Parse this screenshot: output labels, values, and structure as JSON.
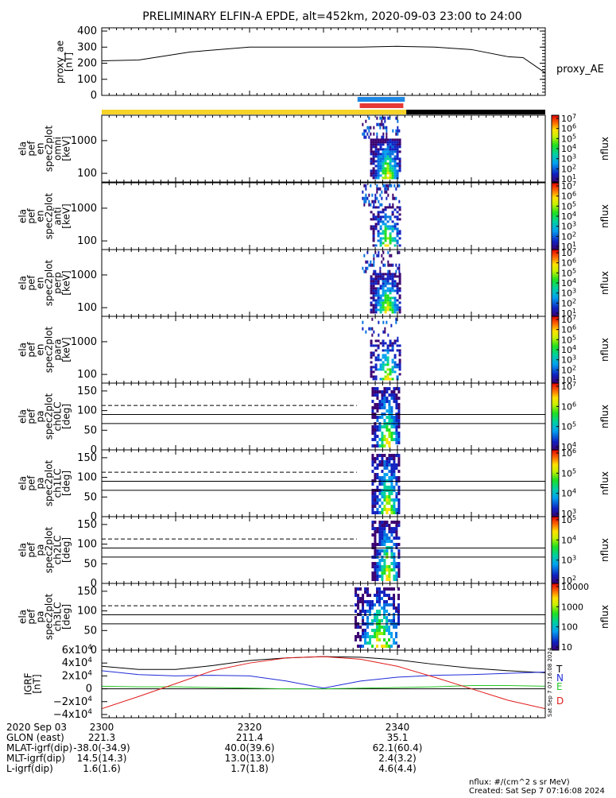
{
  "title": "PRELIMINARY ELFIN-A EPDE, alt=452km, 2020-09-03 23:00 to 24:00",
  "colors": {
    "sun_bar": "#f5d327",
    "shadow_bar": "#000000",
    "science_blue": "#1e88e5",
    "science_red": "#e53935",
    "grf_T": "#000000",
    "grf_N": "#1f2bd6",
    "grf_E": "#27c627",
    "grf_D": "#e11b1b"
  },
  "chart_data": {
    "type": "line",
    "proxy_ae": {
      "ylabel": "proxy_ae [nT]",
      "legend": "proxy_AE",
      "yticks": [
        "400",
        "300",
        "200",
        "100",
        "0"
      ],
      "ylim": [
        0,
        420
      ],
      "x_minutes": [
        0,
        5,
        12,
        20,
        25,
        30,
        35,
        40,
        45,
        50,
        55,
        57,
        60
      ],
      "values": [
        215,
        220,
        270,
        300,
        300,
        300,
        300,
        305,
        300,
        285,
        240,
        235,
        140
      ]
    },
    "energy_panels": [
      {
        "ylabel": [
          "ela",
          "pef",
          "en",
          "spec2plot",
          "omni",
          "[keV]"
        ],
        "yticks": [
          "1000",
          "100"
        ]
      },
      {
        "ylabel": [
          "ela",
          "pef",
          "en",
          "spec2plot",
          "anti",
          "[keV]"
        ],
        "yticks": [
          "1000",
          "100"
        ]
      },
      {
        "ylabel": [
          "ela",
          "pef",
          "en",
          "spec2plot",
          "perp",
          "[keV]"
        ],
        "yticks": [
          "1000",
          "100"
        ]
      },
      {
        "ylabel": [
          "ela",
          "pef",
          "en",
          "spec2plot",
          "para",
          "[keV]"
        ],
        "yticks": [
          "1000",
          "100"
        ]
      }
    ],
    "pa_panels": [
      {
        "ylabel": [
          "ela",
          "pef",
          "pa",
          "spec2plot",
          "ch0LC",
          "[deg]"
        ],
        "yticks": [
          "150",
          "100",
          "50",
          "0"
        ]
      },
      {
        "ylabel": [
          "ela",
          "pef",
          "pa",
          "spec2plot",
          "ch1LC",
          "[deg]"
        ],
        "yticks": [
          "150",
          "100",
          "50",
          "0"
        ]
      },
      {
        "ylabel": [
          "ela",
          "pef",
          "pa",
          "spec2plot",
          "ch2LC",
          "[deg]"
        ],
        "yticks": [
          "150",
          "100",
          "50",
          "0"
        ]
      },
      {
        "ylabel": [
          "ela",
          "pef",
          "pa",
          "spec2plot",
          "ch3LC",
          "[deg]"
        ],
        "yticks": [
          "150",
          "100",
          "50",
          "0"
        ]
      }
    ],
    "colorbars": [
      {
        "ticks": [
          "10",
          "10",
          "10",
          "10",
          "10",
          "10",
          "10"
        ],
        "exps": [
          "7",
          "6",
          "5",
          "4",
          "3",
          "2",
          "1"
        ],
        "label": "nflux"
      },
      {
        "ticks": [
          "10",
          "10",
          "10",
          "10",
          "10",
          "10",
          "10"
        ],
        "exps": [
          "7",
          "6",
          "5",
          "4",
          "3",
          "2",
          "1"
        ],
        "label": "nflux"
      },
      {
        "ticks": [
          "10",
          "10",
          "10",
          "10",
          "10",
          "10",
          "10"
        ],
        "exps": [
          "7",
          "6",
          "5",
          "4",
          "3",
          "2",
          "1"
        ],
        "label": "nflux"
      },
      {
        "ticks": [
          "10",
          "10",
          "10",
          "10",
          "10",
          "10",
          "10"
        ],
        "exps": [
          "7",
          "6",
          "5",
          "4",
          "3",
          "2",
          "1"
        ],
        "label": "nflux"
      },
      {
        "ticks": [
          "10",
          "10",
          "10",
          "10"
        ],
        "exps": [
          "7",
          "6",
          "5",
          "4"
        ],
        "label": "nflux"
      },
      {
        "ticks": [
          "10",
          "10",
          "10",
          "10"
        ],
        "exps": [
          "6",
          "5",
          "4",
          "3"
        ],
        "label": "nflux"
      },
      {
        "ticks": [
          "10",
          "10",
          "10",
          "10"
        ],
        "exps": [
          "5",
          "4",
          "3",
          "2"
        ],
        "label": "nflux"
      },
      {
        "ticks": [
          "10000",
          "1000",
          "100",
          "10"
        ],
        "exps": [
          "",
          "",
          "",
          ""
        ],
        "label": "nflux"
      }
    ],
    "grf": {
      "ylabel": "IGRF [nT]",
      "yticks": [
        "6x10",
        "4x10",
        "2x10",
        "0",
        "−2x10",
        "−4x10"
      ],
      "yexp": "4",
      "series_names": [
        "T",
        "N",
        "E",
        "D"
      ],
      "ylim": [
        -45000,
        60000
      ],
      "x_minutes": [
        0,
        5,
        10,
        15,
        20,
        25,
        30,
        35,
        40,
        45,
        50,
        55,
        60
      ],
      "T": [
        35000,
        30000,
        30000,
        36000,
        44000,
        48000,
        50000,
        49000,
        45000,
        38000,
        32000,
        28000,
        25000
      ],
      "N": [
        28000,
        22000,
        20000,
        21000,
        20000,
        12000,
        1000,
        12000,
        18000,
        21000,
        22000,
        24000,
        26000
      ],
      "E": [
        4000,
        3000,
        3000,
        2000,
        1000,
        0,
        0,
        1000,
        2000,
        3000,
        5000,
        5000,
        4000
      ],
      "D": [
        -31000,
        -12000,
        8000,
        28000,
        40000,
        48000,
        50000,
        46000,
        35000,
        18000,
        0,
        -18000,
        -31000
      ]
    },
    "xticks": [
      "2300",
      "2320",
      "2340"
    ]
  },
  "footer": {
    "rows": [
      {
        "label": "2020 Sep 03",
        "v1": "2300",
        "v2": "2320",
        "v3": "2340"
      },
      {
        "label": "GLON (east)",
        "v1": "221.3",
        "v2": "211.4",
        "v3": "35.1"
      },
      {
        "label": "MLAT-igrf(dip)",
        "v1": "-38.0(-34.9)",
        "v2": "40.0(39.6)",
        "v3": "62.1(60.4)"
      },
      {
        "label": "MLT-igrf(dip)",
        "v1": "14.5(14.3)",
        "v2": "13.0(13.0)",
        "v3": "2.4(3.2)"
      },
      {
        "label": "L-igrf(dip)",
        "v1": "1.6(1.6)",
        "v2": "1.7(1.8)",
        "v3": "4.6(4.4)"
      }
    ],
    "units": "nflux: #/(cm^2 s sr MeV)",
    "created": "Created: Sat Sep  7 07:16:08 2024",
    "side_stamp": "Sat Sep  7 07:16:08 2024"
  }
}
